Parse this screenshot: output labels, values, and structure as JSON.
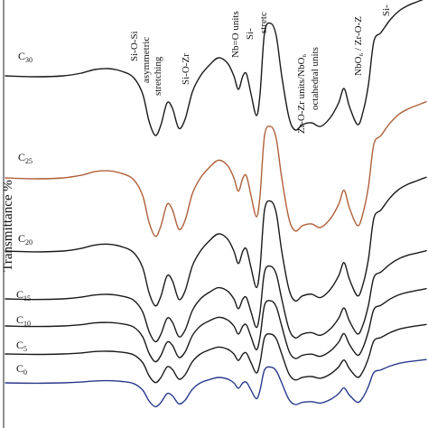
{
  "chart_data": {
    "type": "line",
    "title": "",
    "xlabel": "",
    "ylabel": "Transmittance %",
    "x_direction": "descending wavenumber, left to right (axis numbers not visible)",
    "grid": false,
    "legend": "curve labels at left end of each trace",
    "colors": {
      "C30": "#1a1a1a",
      "C25": "#b0603a",
      "C20": "#1a1a1a",
      "C15": "#1a1a1a",
      "C10": "#1a1a1a",
      "C5": "#1a1a1a",
      "C0": "#2a3a8c"
    },
    "series": [
      {
        "name": "C30",
        "label_main": "C",
        "label_sub": "30"
      },
      {
        "name": "C25",
        "label_main": "C",
        "label_sub": "25"
      },
      {
        "name": "C20",
        "label_main": "C",
        "label_sub": "20"
      },
      {
        "name": "C15",
        "label_main": "C",
        "label_sub": "15"
      },
      {
        "name": "C10",
        "label_main": "C",
        "label_sub": "10"
      },
      {
        "name": "C5",
        "label_main": "C",
        "label_sub": "5"
      },
      {
        "name": "C0",
        "label_main": "C",
        "label_sub": "0"
      }
    ],
    "annotations": [
      {
        "id": "si-o-si",
        "lines": [
          "Si-O-Si",
          "asymmetric",
          "stretching"
        ]
      },
      {
        "id": "si-o-zr",
        "lines": [
          "Si-O-Zr"
        ]
      },
      {
        "id": "nb-o",
        "lines": [
          "Nb=O units"
        ]
      },
      {
        "id": "si-stretch",
        "lines": [
          "Si-",
          "stretc"
        ]
      },
      {
        "id": "zr-o-zr",
        "lines": [
          "Zr-O-Zr units/NbO₆",
          "octahedral units"
        ]
      },
      {
        "id": "nbo6-zr",
        "lines": [
          "NbO₆ / Zr-O-Z"
        ]
      },
      {
        "id": "si-top-right",
        "lines": [
          "Si-"
        ]
      }
    ]
  }
}
